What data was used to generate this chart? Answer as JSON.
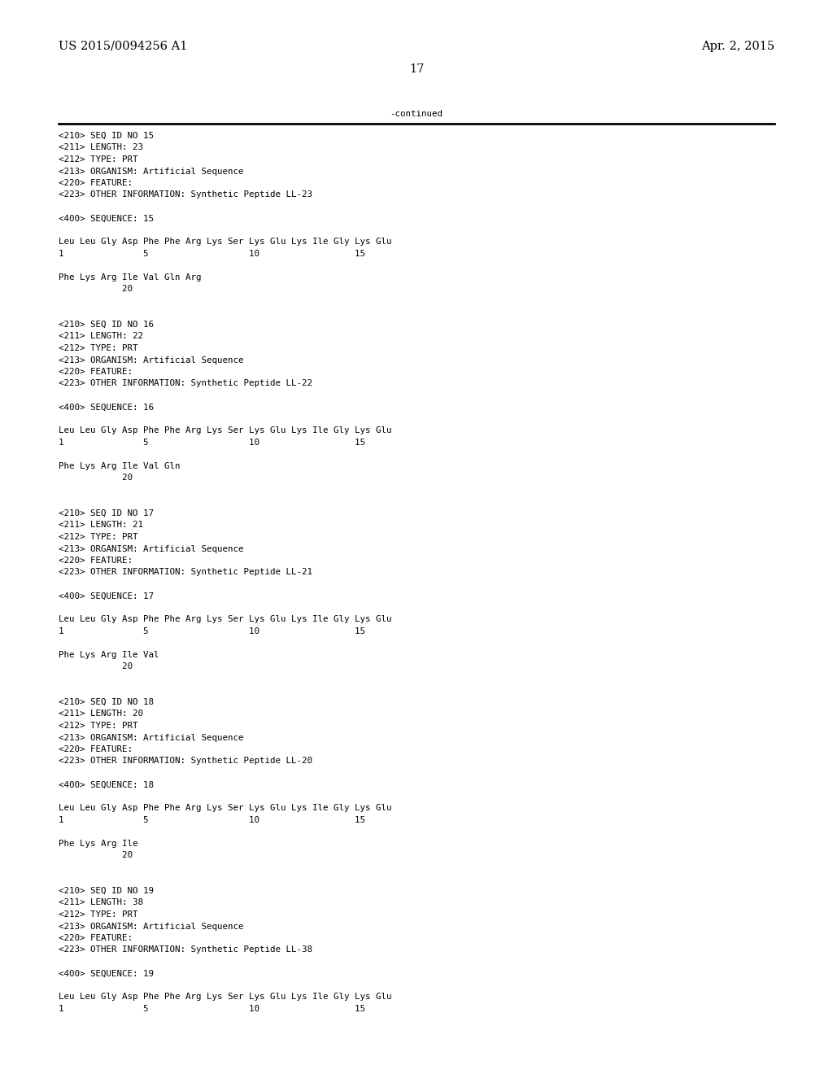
{
  "bg_color": "#ffffff",
  "header_left": "US 2015/0094256 A1",
  "header_right": "Apr. 2, 2015",
  "page_number": "17",
  "continued_label": "-continued",
  "font_size_header": 10.5,
  "font_size_mono": 7.8,
  "content_lines": [
    "<210> SEQ ID NO 15",
    "<211> LENGTH: 23",
    "<212> TYPE: PRT",
    "<213> ORGANISM: Artificial Sequence",
    "<220> FEATURE:",
    "<223> OTHER INFORMATION: Synthetic Peptide LL-23",
    "",
    "<400> SEQUENCE: 15",
    "",
    "Leu Leu Gly Asp Phe Phe Arg Lys Ser Lys Glu Lys Ile Gly Lys Glu",
    "1               5                   10                  15",
    "",
    "Phe Lys Arg Ile Val Gln Arg",
    "            20",
    "",
    "",
    "<210> SEQ ID NO 16",
    "<211> LENGTH: 22",
    "<212> TYPE: PRT",
    "<213> ORGANISM: Artificial Sequence",
    "<220> FEATURE:",
    "<223> OTHER INFORMATION: Synthetic Peptide LL-22",
    "",
    "<400> SEQUENCE: 16",
    "",
    "Leu Leu Gly Asp Phe Phe Arg Lys Ser Lys Glu Lys Ile Gly Lys Glu",
    "1               5                   10                  15",
    "",
    "Phe Lys Arg Ile Val Gln",
    "            20",
    "",
    "",
    "<210> SEQ ID NO 17",
    "<211> LENGTH: 21",
    "<212> TYPE: PRT",
    "<213> ORGANISM: Artificial Sequence",
    "<220> FEATURE:",
    "<223> OTHER INFORMATION: Synthetic Peptide LL-21",
    "",
    "<400> SEQUENCE: 17",
    "",
    "Leu Leu Gly Asp Phe Phe Arg Lys Ser Lys Glu Lys Ile Gly Lys Glu",
    "1               5                   10                  15",
    "",
    "Phe Lys Arg Ile Val",
    "            20",
    "",
    "",
    "<210> SEQ ID NO 18",
    "<211> LENGTH: 20",
    "<212> TYPE: PRT",
    "<213> ORGANISM: Artificial Sequence",
    "<220> FEATURE:",
    "<223> OTHER INFORMATION: Synthetic Peptide LL-20",
    "",
    "<400> SEQUENCE: 18",
    "",
    "Leu Leu Gly Asp Phe Phe Arg Lys Ser Lys Glu Lys Ile Gly Lys Glu",
    "1               5                   10                  15",
    "",
    "Phe Lys Arg Ile",
    "            20",
    "",
    "",
    "<210> SEQ ID NO 19",
    "<211> LENGTH: 38",
    "<212> TYPE: PRT",
    "<213> ORGANISM: Artificial Sequence",
    "<220> FEATURE:",
    "<223> OTHER INFORMATION: Synthetic Peptide LL-38",
    "",
    "<400> SEQUENCE: 19",
    "",
    "Leu Leu Gly Asp Phe Phe Arg Lys Ser Lys Glu Lys Ile Gly Lys Glu",
    "1               5                   10                  15"
  ]
}
